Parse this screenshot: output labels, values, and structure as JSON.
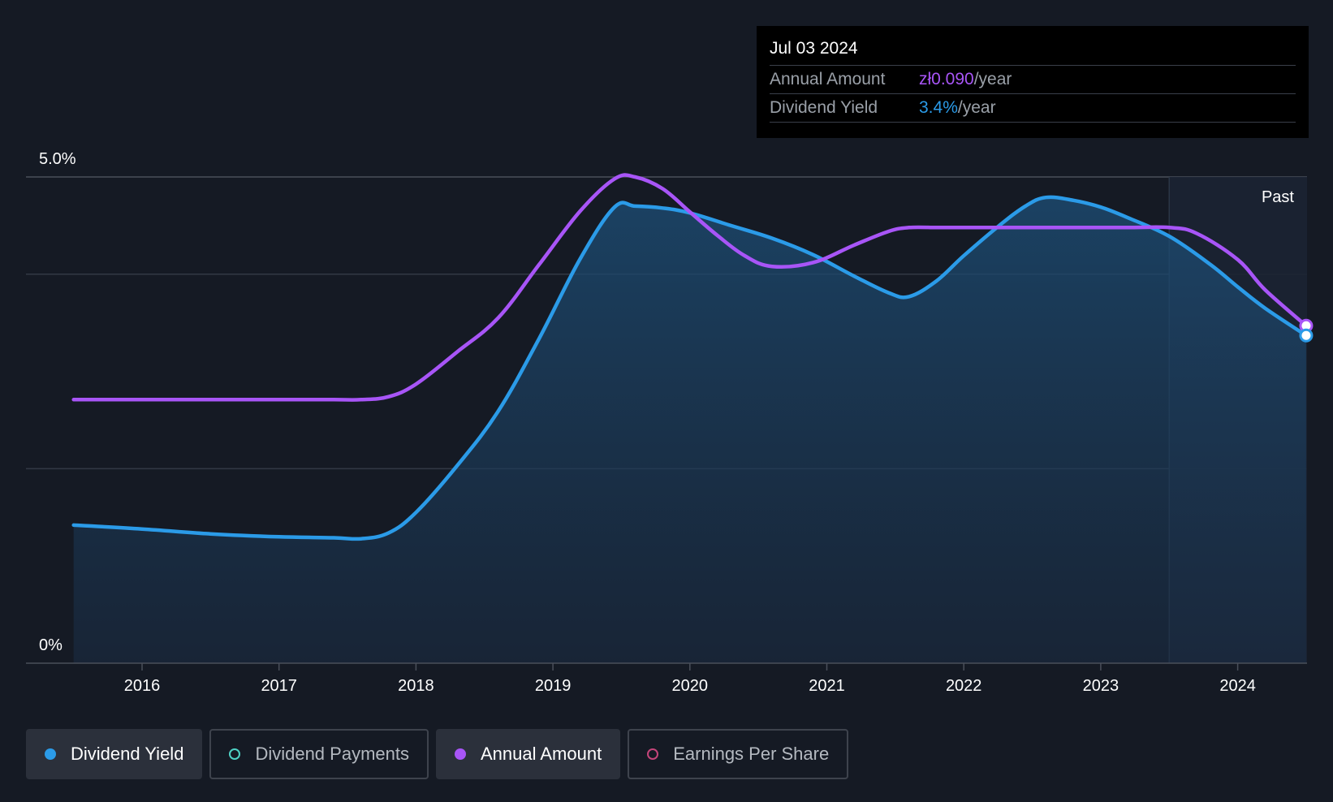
{
  "tooltip": {
    "date": "Jul 03 2024",
    "rows": [
      {
        "label": "Annual Amount",
        "value": "zł0.090",
        "unit": "/year",
        "color": "#a855f7"
      },
      {
        "label": "Dividend Yield",
        "value": "3.4%",
        "unit": "/year",
        "color": "#2b9be8"
      }
    ]
  },
  "past_label": "Past",
  "legend": [
    {
      "label": "Dividend Yield",
      "color": "#2b9be8",
      "active": true,
      "filled": true
    },
    {
      "label": "Dividend Payments",
      "color": "#4fd1c5",
      "active": false,
      "filled": false
    },
    {
      "label": "Annual Amount",
      "color": "#a855f7",
      "active": true,
      "filled": true
    },
    {
      "label": "Earnings Per Share",
      "color": "#c4457a",
      "active": false,
      "filled": false
    }
  ],
  "chart_data": {
    "type": "line",
    "xlim": [
      2015.0,
      2024.5
    ],
    "ylim": [
      0,
      5.0
    ],
    "y_tick_labels": [
      {
        "value": 5.0,
        "label": "5.0%"
      },
      {
        "value": 0,
        "label": "0%"
      }
    ],
    "y_gridlines": [
      5.0,
      4.0,
      2.0
    ],
    "x_ticks": [
      2016,
      2017,
      2018,
      2019,
      2020,
      2021,
      2022,
      2023,
      2024
    ],
    "x_tick_labels": [
      "2016",
      "2017",
      "2018",
      "2019",
      "2020",
      "2021",
      "2022",
      "2023",
      "2024"
    ],
    "past_start": 2023.5,
    "series": [
      {
        "name": "Dividend Yield",
        "color": "#2b9be8",
        "area": true,
        "x": [
          2015.5,
          2016.0,
          2016.5,
          2017.0,
          2017.4,
          2017.6,
          2017.8,
          2018.0,
          2018.3,
          2018.6,
          2018.9,
          2019.2,
          2019.45,
          2019.6,
          2019.8,
          2020.0,
          2020.3,
          2020.6,
          2020.9,
          2021.2,
          2021.45,
          2021.6,
          2021.8,
          2022.0,
          2022.25,
          2022.45,
          2022.6,
          2022.8,
          2023.0,
          2023.2,
          2023.5,
          2023.8,
          2024.0,
          2024.2,
          2024.5
        ],
        "y": [
          1.42,
          1.38,
          1.33,
          1.3,
          1.29,
          1.28,
          1.34,
          1.55,
          2.03,
          2.59,
          3.34,
          4.16,
          4.69,
          4.7,
          4.68,
          4.63,
          4.5,
          4.37,
          4.2,
          3.98,
          3.81,
          3.77,
          3.93,
          4.19,
          4.49,
          4.7,
          4.79,
          4.76,
          4.69,
          4.58,
          4.39,
          4.1,
          3.87,
          3.65,
          3.37
        ]
      },
      {
        "name": "Annual Amount",
        "color": "#a855f7",
        "area": false,
        "x": [
          2015.5,
          2016.0,
          2016.5,
          2017.0,
          2017.4,
          2017.6,
          2017.8,
          2018.0,
          2018.3,
          2018.6,
          2018.9,
          2019.2,
          2019.45,
          2019.6,
          2019.8,
          2020.0,
          2020.2,
          2020.4,
          2020.6,
          2020.9,
          2021.2,
          2021.45,
          2021.6,
          2021.8,
          2022.0,
          2022.4,
          2022.8,
          2023.2,
          2023.5,
          2023.7,
          2024.0,
          2024.2,
          2024.5
        ],
        "y": [
          2.71,
          2.71,
          2.71,
          2.71,
          2.71,
          2.71,
          2.74,
          2.87,
          3.2,
          3.55,
          4.1,
          4.65,
          4.98,
          5.0,
          4.88,
          4.64,
          4.4,
          4.19,
          4.08,
          4.12,
          4.3,
          4.44,
          4.48,
          4.48,
          4.48,
          4.48,
          4.48,
          4.48,
          4.48,
          4.42,
          4.15,
          3.84,
          3.47
        ]
      }
    ]
  }
}
